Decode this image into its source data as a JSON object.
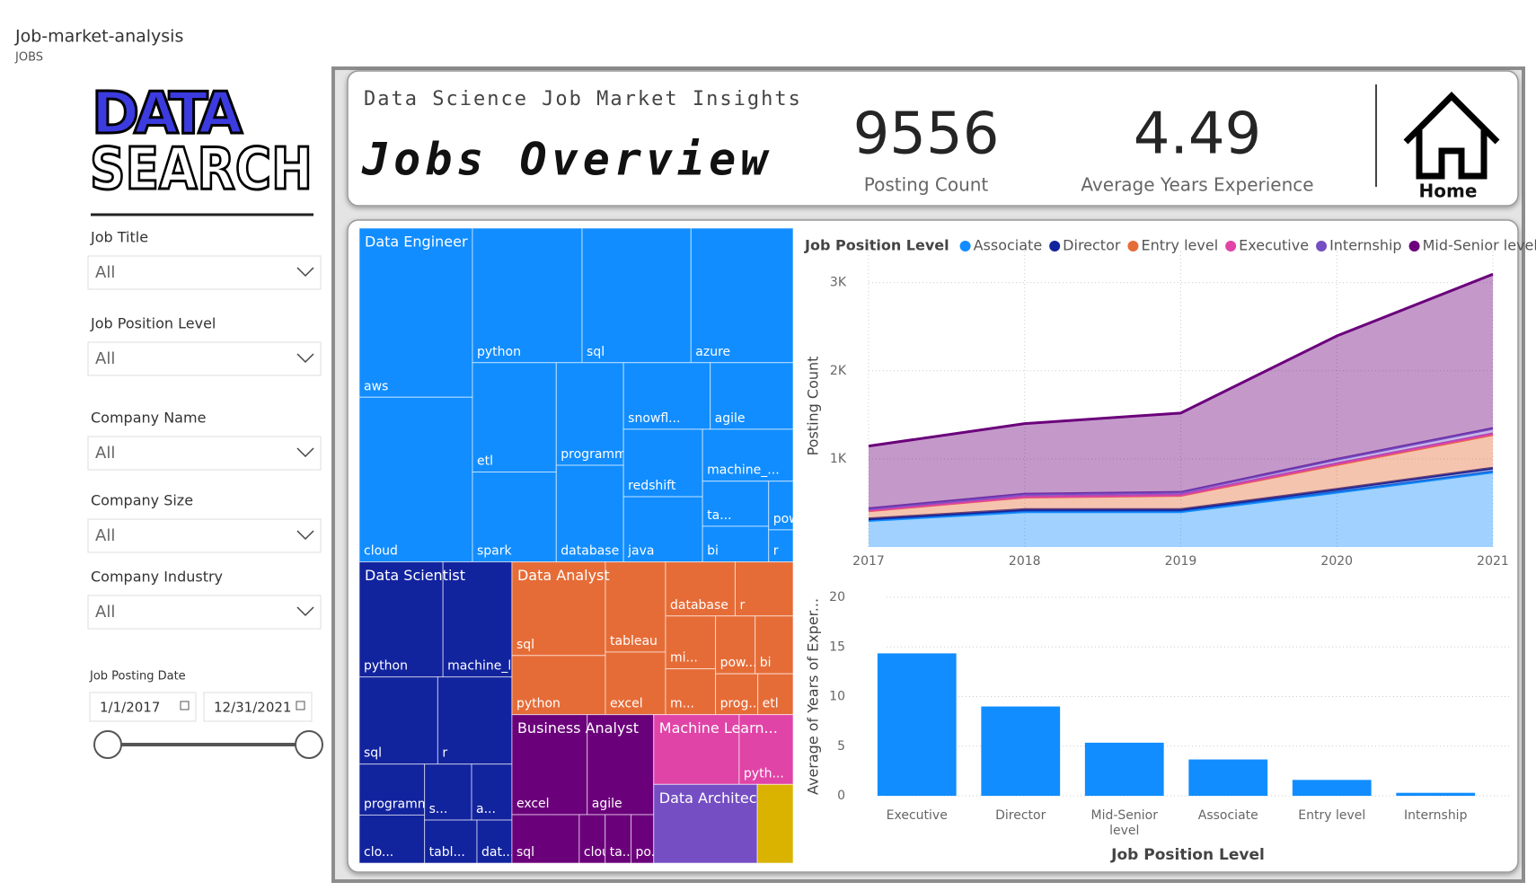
{
  "report": {
    "title": "Job-market-analysis",
    "page": "JOBS"
  },
  "logo": {
    "line1": "DATA",
    "line2": "SEARCH"
  },
  "filters": [
    {
      "label": "Job Title",
      "value": "All"
    },
    {
      "label": "Job Position Level",
      "value": "All"
    },
    {
      "label": "Company Name",
      "value": "All"
    },
    {
      "label": "Company Size",
      "value": "All"
    },
    {
      "label": "Company Industry",
      "value": "All"
    }
  ],
  "date_filter": {
    "label": "Job Posting Date",
    "start": "1/1/2017",
    "end": "12/31/2021"
  },
  "header": {
    "subtitle": "Data Science Job Market Insights",
    "title": "Jobs Overview"
  },
  "kpis": [
    {
      "value": 9556,
      "label": "Posting Count"
    },
    {
      "value": 4.49,
      "label": "Average Years Experience"
    }
  ],
  "home": {
    "label": "Home"
  },
  "chart_data": [
    {
      "type": "treemap",
      "groups": [
        {
          "name": "Data Engineer",
          "color": "#118dff",
          "children": [
            {
              "label": "aws",
              "value": 610
            },
            {
              "label": "cloud",
              "value": 594
            },
            {
              "label": "python",
              "value": 470
            },
            {
              "label": "sql",
              "value": 467
            },
            {
              "label": "azure",
              "value": 438
            },
            {
              "label": "etl",
              "value": 292
            },
            {
              "label": "spark",
              "value": 240
            },
            {
              "label": "programming",
              "value": 220
            },
            {
              "label": "database",
              "value": 207
            },
            {
              "label": "snowfl...",
              "value": 184
            },
            {
              "label": "agile",
              "value": 176
            },
            {
              "label": "redshift",
              "value": 170
            },
            {
              "label": "java",
              "value": 164
            },
            {
              "label": "machine_...",
              "value": 150
            },
            {
              "label": "ta...",
              "value": 95
            },
            {
              "label": "bi",
              "value": 75
            },
            {
              "label": "pow...",
              "value": 38
            },
            {
              "label": "r",
              "value": 25
            }
          ]
        },
        {
          "name": "Data Scientist",
          "color": "#12239e",
          "children": [
            {
              "label": "python",
              "value": 307
            },
            {
              "label": "machine_lea...",
              "value": 253
            },
            {
              "label": "sql",
              "value": 218
            },
            {
              "label": "r",
              "value": 206
            },
            {
              "label": "programmi...",
              "value": 106
            },
            {
              "label": "clo...",
              "value": 100
            },
            {
              "label": "s...",
              "value": 84
            },
            {
              "label": "a...",
              "value": 72
            },
            {
              "label": "tabl...",
              "value": 72
            },
            {
              "label": "dat...",
              "value": 48
            }
          ]
        },
        {
          "name": "Data Analyst",
          "color": "#e66c37",
          "children": [
            {
              "label": "sql",
              "value": 279
            },
            {
              "label": "python",
              "value": 176
            },
            {
              "label": "tableau",
              "value": 173
            },
            {
              "label": "excel",
              "value": 120
            },
            {
              "label": "database",
              "value": 120
            },
            {
              "label": "r",
              "value": 100
            },
            {
              "label": "mi...",
              "value": 84
            },
            {
              "label": "m...",
              "value": 73
            },
            {
              "label": "pow...",
              "value": 73
            },
            {
              "label": "bi",
              "value": 70
            },
            {
              "label": "prog...",
              "value": 55
            },
            {
              "label": "etl",
              "value": 46
            }
          ]
        },
        {
          "name": "Business Analyst",
          "color": "#6b007b",
          "children": [
            {
              "label": "excel",
              "value": 240
            },
            {
              "label": "agile",
              "value": 212
            },
            {
              "label": "sql",
              "value": 104
            },
            {
              "label": "cloud",
              "value": 40
            },
            {
              "label": "ta...",
              "value": 40
            },
            {
              "label": "po...",
              "value": 35
            }
          ]
        },
        {
          "name": "Machine Learn...",
          "color": "#e044a7",
          "children": [
            {
              "label": null,
              "value": 190
            },
            {
              "label": "pyth...",
              "value": 120
            }
          ]
        },
        {
          "name": "Data Architect",
          "color": "#744ec2",
          "children": [
            {
              "label": null,
              "value": 260
            }
          ]
        },
        {
          "name": null,
          "color": "#d9b300",
          "children": [
            {
              "label": null,
              "value": 90
            }
          ]
        }
      ]
    },
    {
      "type": "area",
      "legend_title": "Job Position Level",
      "y_label": "Posting Count",
      "x": [
        2017,
        2018,
        2019,
        2020,
        2021
      ],
      "xlim": [
        2017,
        2021
      ],
      "xticks": [
        2017,
        2018,
        2019,
        2020,
        2021
      ],
      "ylim": [
        0,
        3200
      ],
      "yticks": [
        {
          "value": 1000,
          "label": "1K"
        },
        {
          "value": 2000,
          "label": "2K"
        },
        {
          "value": 3000,
          "label": "3K"
        }
      ],
      "grid": true,
      "stacked": true,
      "series": [
        {
          "name": "Associate",
          "color": "#118dff",
          "values": [
            300,
            400,
            400,
            620,
            850
          ]
        },
        {
          "name": "Director",
          "color": "#12239e",
          "values": [
            20,
            25,
            25,
            35,
            45
          ]
        },
        {
          "name": "Entry level",
          "color": "#e66c37",
          "values": [
            90,
            140,
            160,
            280,
            380
          ]
        },
        {
          "name": "Executive",
          "color": "#e044a7",
          "values": [
            5,
            5,
            5,
            10,
            10
          ]
        },
        {
          "name": "Internship",
          "color": "#744ec2",
          "values": [
            20,
            30,
            30,
            50,
            60
          ]
        },
        {
          "name": "Mid-Senior level",
          "color": "#6b007b",
          "values": [
            710,
            800,
            900,
            1400,
            1750
          ]
        }
      ]
    },
    {
      "type": "bar",
      "x_label": "Job Position Level",
      "y_label": "Average of Years of Exper...",
      "categories": [
        "Executive",
        "Director",
        "Mid-Senior level",
        "Associate",
        "Entry level",
        "Internship"
      ],
      "values": [
        14.35,
        9.0,
        5.35,
        3.66,
        1.6,
        0.3
      ],
      "color": "#118dff",
      "ylim": [
        0,
        20
      ],
      "yticks": [
        0,
        5,
        10,
        15,
        20
      ],
      "grid": true
    }
  ]
}
